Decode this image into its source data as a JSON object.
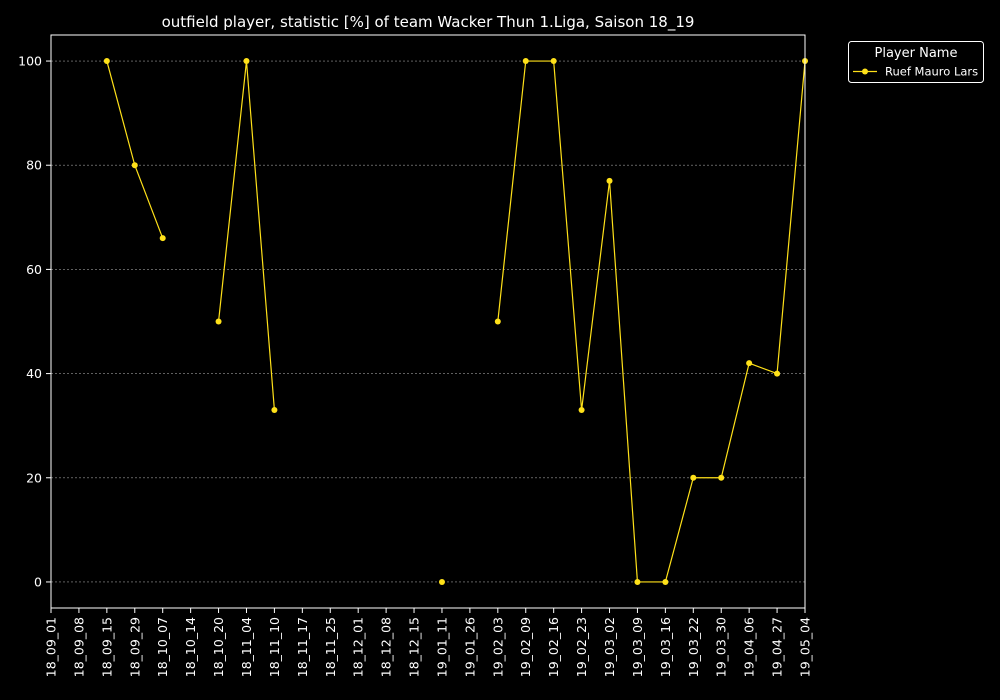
{
  "chart_data": {
    "type": "line",
    "title": "outfield player, statistic [%] of team Wacker Thun 1.Liga, Saison 18_19",
    "xlabel": "",
    "ylabel": "",
    "categories": [
      "18_09_01",
      "18_09_08",
      "18_09_15",
      "18_09_29",
      "18_10_07",
      "18_10_14",
      "18_10_20",
      "18_11_04",
      "18_11_10",
      "18_11_17",
      "18_11_25",
      "18_12_01",
      "18_12_08",
      "18_12_15",
      "19_01_11",
      "19_01_26",
      "19_02_03",
      "19_02_09",
      "19_02_16",
      "19_02_23",
      "19_03_02",
      "19_03_09",
      "19_03_16",
      "19_03_22",
      "19_03_30",
      "19_04_06",
      "19_04_27",
      "19_05_04"
    ],
    "ylim": [
      -5,
      105
    ],
    "yticks": [
      0,
      20,
      40,
      60,
      80,
      100
    ],
    "grid": true,
    "legend": {
      "title": "Player Name",
      "placement": "outside-top-right"
    },
    "series": [
      {
        "name": "Ruef Mauro Lars",
        "color": "#ffe119",
        "values": [
          null,
          null,
          100,
          80,
          66,
          null,
          50,
          100,
          33,
          null,
          null,
          null,
          null,
          null,
          0,
          null,
          50,
          100,
          100,
          33,
          77,
          0,
          0,
          20,
          20,
          42,
          40,
          100
        ]
      }
    ]
  }
}
